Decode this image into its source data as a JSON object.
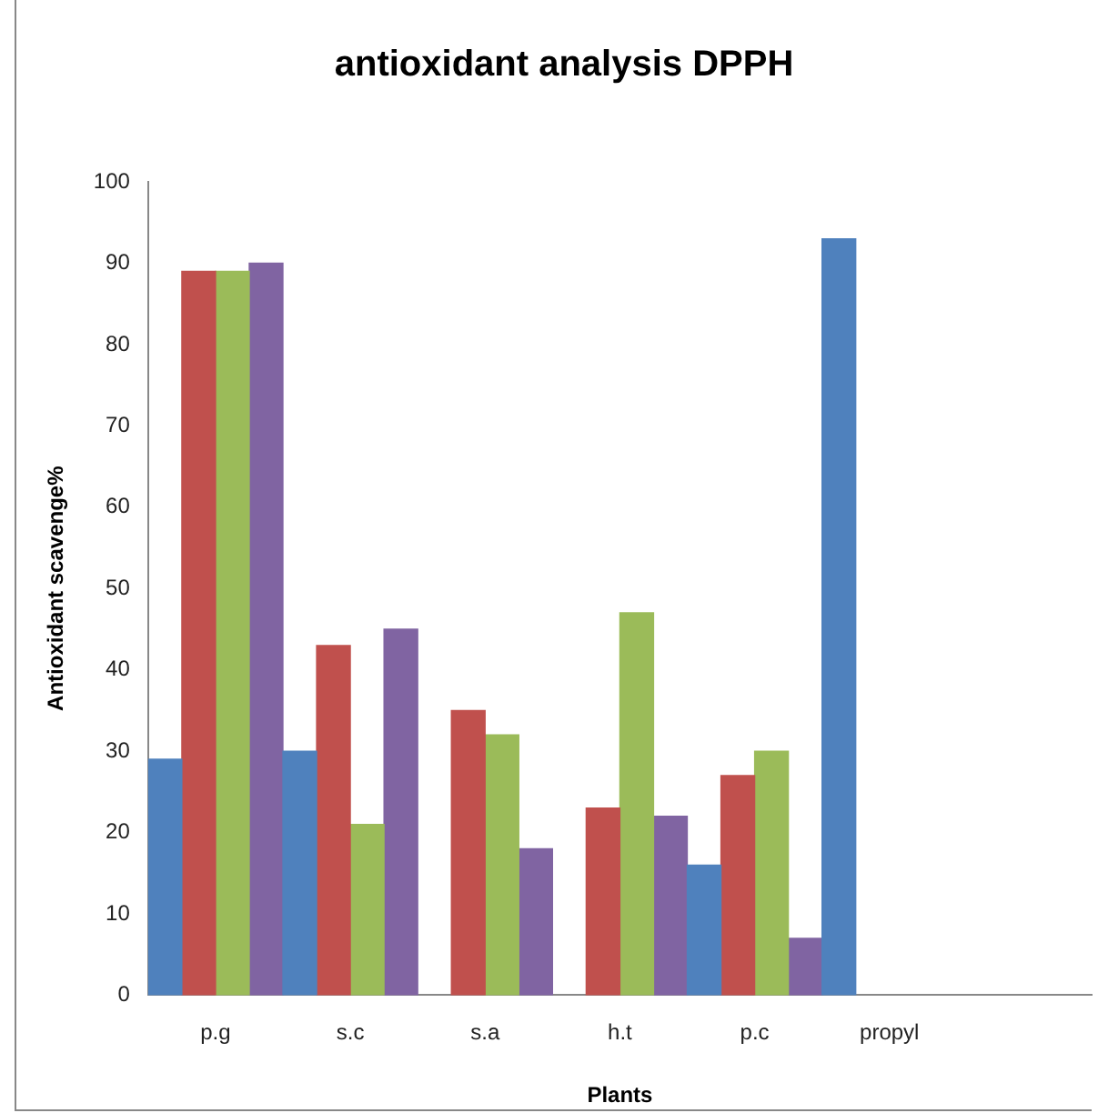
{
  "chart_data": {
    "type": "bar",
    "title": "antioxidant analysis DPPH",
    "xlabel": "Plants",
    "ylabel": "Antioxidant scavenge%",
    "categories": [
      "p.g",
      "s.c",
      "s.a",
      "h.t",
      "p.c",
      "propyl",
      null
    ],
    "series": [
      {
        "color": "#4f81bd",
        "values": [
          29,
          30,
          null,
          null,
          16,
          93,
          null
        ]
      },
      {
        "color": "#c0504d",
        "values": [
          89,
          43,
          35,
          23,
          27,
          null,
          null
        ]
      },
      {
        "color": "#9bbb59",
        "values": [
          89,
          21,
          32,
          47,
          30,
          null,
          null
        ]
      },
      {
        "color": "#8064a2",
        "values": [
          90,
          45,
          18,
          22,
          7,
          null,
          null
        ]
      }
    ],
    "ylim": [
      0,
      100
    ],
    "yticks": [
      0,
      10,
      20,
      30,
      40,
      50,
      60,
      70,
      80,
      90,
      100
    ],
    "grid": false,
    "legend": false
  }
}
